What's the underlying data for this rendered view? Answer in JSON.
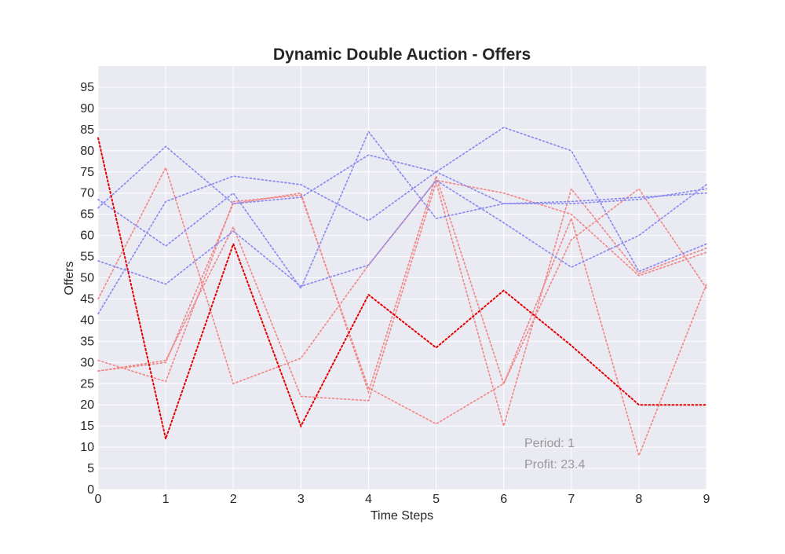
{
  "chart_data": {
    "type": "line",
    "title": "Dynamic Double Auction - Offers",
    "xlabel": "Time Steps",
    "ylabel": "Offers",
    "xlim": [
      0,
      9
    ],
    "ylim": [
      0,
      100
    ],
    "x_ticks": [
      0,
      1,
      2,
      3,
      4,
      5,
      6,
      7,
      8,
      9
    ],
    "y_ticks": [
      0,
      5,
      10,
      15,
      20,
      25,
      30,
      35,
      40,
      45,
      50,
      55,
      60,
      65,
      70,
      75,
      80,
      85,
      90,
      95
    ],
    "grid": true,
    "line_style": "dotted",
    "x": [
      0,
      1,
      2,
      3,
      4,
      5,
      6,
      7,
      8,
      9
    ],
    "series": [
      {
        "role": "highlighted-seller",
        "color": "#e60000",
        "values": [
          83,
          12,
          58,
          15,
          46,
          33.5,
          47,
          34,
          20,
          20
        ]
      },
      {
        "role": "seller",
        "color": "#f08a8a",
        "values": [
          45,
          76,
          25,
          31,
          53,
          73,
          70,
          65,
          50.5,
          56
        ]
      },
      {
        "role": "seller",
        "color": "#f08a8a",
        "values": [
          28,
          30.5,
          62,
          22,
          21,
          72.5,
          15,
          71,
          51,
          57
        ]
      },
      {
        "role": "seller",
        "color": "#f08a8a",
        "values": [
          30.5,
          25.5,
          68,
          69.5,
          24,
          15.5,
          25,
          59,
          71,
          47.5
        ]
      },
      {
        "role": "seller",
        "color": "#f08a8a",
        "values": [
          28,
          30,
          67.5,
          70,
          23,
          74,
          25,
          64,
          8,
          48.5
        ]
      },
      {
        "role": "buyer",
        "color": "#8c8cf0",
        "values": [
          41.5,
          68,
          74,
          72,
          63.5,
          75,
          85.5,
          80,
          51.5,
          58
        ]
      },
      {
        "role": "buyer",
        "color": "#8c8cf0",
        "values": [
          68.5,
          57.5,
          70,
          47.5,
          84.5,
          64,
          67.5,
          68,
          69,
          70
        ]
      },
      {
        "role": "buyer",
        "color": "#8c8cf0",
        "values": [
          54,
          48.5,
          61,
          48,
          53,
          73,
          63,
          52.5,
          60,
          72
        ]
      },
      {
        "role": "buyer",
        "color": "#8c8cf0",
        "values": [
          66.5,
          81,
          67.5,
          69,
          79,
          75,
          67.5,
          67.5,
          68.5,
          71
        ]
      }
    ],
    "annotations": [
      "Period: 1",
      "Profit: 23.4"
    ],
    "colors": {
      "background": "#eaeaf2",
      "grid": "#ffffff",
      "text": "#262626",
      "annotation": "#999999"
    }
  }
}
